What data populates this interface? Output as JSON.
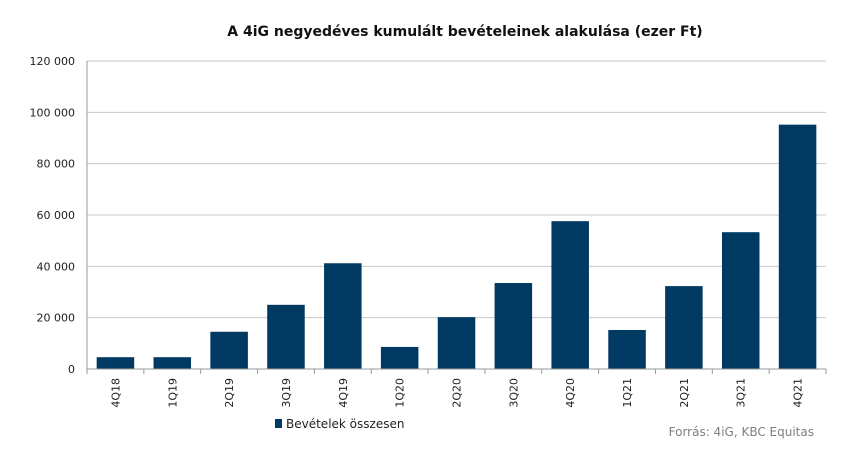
{
  "chart_data": {
    "type": "bar",
    "title": "A 4iG negyedéves kumulált bevételeinek alakulása (ezer Ft)",
    "categories": [
      "4Q18",
      "1Q19",
      "2Q19",
      "3Q19",
      "4Q19",
      "1Q20",
      "2Q20",
      "3Q20",
      "4Q20",
      "1Q21",
      "2Q21",
      "3Q21",
      "4Q21"
    ],
    "series": [
      {
        "name": "Bevételek összesen",
        "color": "#003a63",
        "values": [
          4600,
          4600,
          14500,
          25000,
          41200,
          8600,
          20200,
          33500,
          57600,
          15200,
          32300,
          53300,
          95200
        ]
      }
    ],
    "ylim": [
      0,
      120000
    ],
    "yticks": [
      0,
      20000,
      40000,
      60000,
      80000,
      100000,
      120000
    ],
    "ytick_labels": [
      "0",
      "20 000",
      "40 000",
      "60 000",
      "80 000",
      "100 000",
      "120 000"
    ],
    "xlabel": "",
    "ylabel": "",
    "grid": true,
    "legend_position": "bottom-left",
    "source_note": "Forrás: 4iG, KBC Equitas"
  }
}
